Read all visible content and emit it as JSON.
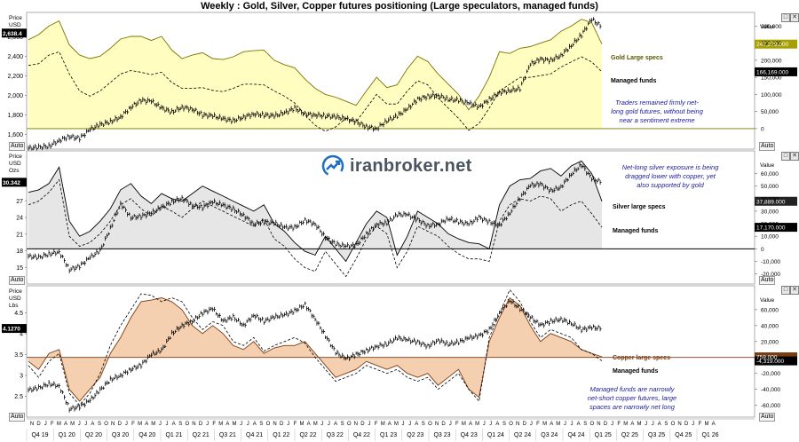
{
  "title": "Weekly : Gold, Silver, Copper futures positioning (Large speculators, managed funds)",
  "watermark": "iranbroker.net",
  "auto_label": "Auto",
  "colors": {
    "gold": "#7a7400",
    "gold_fill": "#fffdb8",
    "silver": "#000000",
    "silver_fill": "#e3e3e3",
    "copper": "#7a3c12",
    "copper_fill": "#f3cba8",
    "annotation": "#1a1aa0",
    "brand": "#1f6fc0"
  },
  "x_axis": {
    "months": [
      "N",
      "D",
      "J",
      "F",
      "M",
      "A",
      "M",
      "J",
      "J",
      "A",
      "S",
      "O",
      "N",
      "D",
      "J",
      "F",
      "M",
      "A",
      "M",
      "J",
      "J",
      "A",
      "S",
      "O",
      "N",
      "D",
      "J",
      "F",
      "M",
      "A",
      "M",
      "J",
      "J",
      "A",
      "S",
      "O",
      "N",
      "D",
      "J",
      "F",
      "M",
      "A",
      "M",
      "J",
      "J",
      "A",
      "S",
      "O",
      "N",
      "D",
      "J",
      "F",
      "M",
      "A",
      "M",
      "J",
      "J",
      "A",
      "S",
      "O",
      "N",
      "D",
      "J",
      "F",
      "M",
      "A",
      "M",
      "J",
      "J",
      "A",
      "S",
      "O",
      "N",
      "D",
      "J",
      "F",
      "M",
      "A",
      "M",
      "J",
      "J",
      "A",
      "S",
      "O",
      "N",
      "D",
      "J",
      "F",
      "M",
      "A",
      "M",
      "J",
      "J",
      "A",
      "S",
      "O",
      "N",
      "D",
      "J",
      "F",
      "M",
      "A"
    ],
    "quarters": [
      "Q4 19",
      "Q1 20",
      "Q2 20",
      "Q3 20",
      "Q4 20",
      "Q1 21",
      "Q2 21",
      "Q3 21",
      "Q4 21",
      "Q1 22",
      "Q2 22",
      "Q3 22",
      "Q4 22",
      "Q1 23",
      "Q2 23",
      "Q3 23",
      "Q4 23",
      "Q1 24",
      "Q2 24",
      "Q3 24",
      "Q4 24",
      "Q1 25",
      "Q2 25",
      "Q3 25",
      "Q4 25",
      "Q1 26"
    ]
  },
  "chart_data": [
    {
      "type": "line",
      "panel": "gold",
      "left_axis": {
        "label_1": "Price",
        "label_2": "USD",
        "ticks": [
          "2,600",
          "2,400",
          "2,200",
          "2,000",
          "1,800",
          "1,600"
        ],
        "range": [
          1450,
          2850
        ],
        "current": "2,638.4"
      },
      "right_axis": {
        "label": "Value",
        "ticks": [
          "300,000",
          "250,000",
          "200,000",
          "150,000",
          "100,000",
          "50,000",
          "0"
        ],
        "range": [
          -60000,
          340000
        ]
      },
      "annotation": [
        "Traders remained firmly net-",
        "long gold futures, without being",
        "near a sentiment extreme"
      ],
      "series": [
        {
          "name": "Gold Large specs",
          "value_label": "247,279.000",
          "style": "area",
          "values": [
            260000,
            275000,
            300000,
            315000,
            245000,
            215000,
            205000,
            212000,
            235000,
            262000,
            270000,
            270000,
            258000,
            270000,
            230000,
            205000,
            215000,
            222000,
            205000,
            202000,
            210000,
            225000,
            228000,
            230000,
            200000,
            187000,
            178000,
            145000,
            118000,
            100000,
            92000,
            80000,
            68000,
            110000,
            150000,
            120000,
            128000,
            175000,
            212000,
            196000,
            160000,
            130000,
            100000,
            55000,
            95000,
            150000,
            225000,
            220000,
            235000,
            240000,
            250000,
            260000,
            285000,
            300000,
            320000,
            310000,
            247279
          ]
        },
        {
          "name": "Managed funds",
          "value_label": "166,169.000",
          "style": "dashed",
          "values": [
            185000,
            190000,
            215000,
            225000,
            160000,
            110000,
            95000,
            110000,
            135000,
            160000,
            170000,
            165000,
            158000,
            165000,
            135000,
            118000,
            118000,
            120000,
            112000,
            108000,
            118000,
            130000,
            130000,
            128000,
            110000,
            95000,
            75000,
            40000,
            10000,
            -8000,
            5000,
            30000,
            20000,
            60000,
            100000,
            72000,
            72000,
            110000,
            140000,
            128000,
            90000,
            60000,
            30000,
            -5000,
            15000,
            60000,
            110000,
            130000,
            150000,
            150000,
            155000,
            160000,
            180000,
            195000,
            210000,
            195000,
            166169
          ]
        },
        {
          "name": "Price",
          "style": "ohlc",
          "values": [
            1460,
            1470,
            1480,
            1540,
            1580,
            1560,
            1650,
            1700,
            1730,
            1780,
            1880,
            1950,
            1940,
            1870,
            1830,
            1880,
            1860,
            1800,
            1790,
            1760,
            1740,
            1780,
            1810,
            1800,
            1790,
            1820,
            1870,
            1810,
            1800,
            1790,
            1780,
            1760,
            1730,
            1680,
            1660,
            1740,
            1790,
            1860,
            1960,
            1990,
            2000,
            1960,
            1950,
            1920,
            1880,
            1960,
            2030,
            2050,
            2070,
            2320,
            2370,
            2360,
            2410,
            2510,
            2620,
            2780,
            2700
          ]
        }
      ]
    },
    {
      "type": "line",
      "panel": "silver",
      "left_axis": {
        "label_1": "Price",
        "label_2": "USD",
        "label_3": "Ozs",
        "ticks": [
          "30",
          "27",
          "24",
          "21",
          "18",
          "15"
        ],
        "range": [
          12,
          36
        ],
        "current": "30.342"
      },
      "right_axis": {
        "label": "Value",
        "ticks": [
          "60,000",
          "50,000",
          "40,000",
          "30,000",
          "20,000",
          "10,000",
          "0",
          "-10,000",
          "-20,000"
        ],
        "range": [
          -28000,
          78000
        ]
      },
      "annotation": [
        "Net-long silver exposure is being",
        "dragged lower with copper, yet",
        "also supported by gold"
      ],
      "series": [
        {
          "name": "Silver large specs",
          "value_label": "37,889.000",
          "style": "area",
          "values": [
            45000,
            47000,
            52000,
            65000,
            22000,
            10000,
            14000,
            22000,
            32000,
            47000,
            52000,
            42000,
            36000,
            44000,
            40000,
            38000,
            44000,
            50000,
            46000,
            42000,
            38000,
            34000,
            30000,
            35000,
            20000,
            14000,
            5000,
            -2000,
            -5000,
            10000,
            0,
            -10000,
            5000,
            20000,
            30000,
            25000,
            -5000,
            10000,
            30000,
            25000,
            20000,
            12000,
            8000,
            5000,
            4000,
            0,
            35000,
            50000,
            55000,
            56000,
            62000,
            64000,
            58000,
            66000,
            70000,
            60000,
            37889
          ]
        },
        {
          "name": "Managed funds",
          "value_label": "17,170.000",
          "style": "dashed",
          "values": [
            35000,
            38000,
            45000,
            55000,
            10000,
            2000,
            5000,
            12000,
            22000,
            35000,
            40000,
            32000,
            26000,
            34000,
            30000,
            25000,
            32000,
            38000,
            34000,
            30000,
            26000,
            22000,
            18000,
            24000,
            8000,
            2000,
            -8000,
            -15000,
            -18000,
            -2000,
            -12000,
            -22000,
            -8000,
            8000,
            18000,
            12000,
            -15000,
            -2000,
            18000,
            14000,
            10000,
            2000,
            -4000,
            -8000,
            -8000,
            -10000,
            22000,
            35000,
            40000,
            38000,
            42000,
            40000,
            30000,
            35000,
            38000,
            28000,
            17170
          ]
        },
        {
          "name": "Price",
          "style": "ohlc",
          "values": [
            17.0,
            16.8,
            17.4,
            17.8,
            14.6,
            15.2,
            16.8,
            18.0,
            22.0,
            26.5,
            24.0,
            24.2,
            24.8,
            25.8,
            26.8,
            27.5,
            26.2,
            25.8,
            26.8,
            26.2,
            25.5,
            24.4,
            22.8,
            23.2,
            23.0,
            22.2,
            22.2,
            23.5,
            22.8,
            20.4,
            19.2,
            18.8,
            19.0,
            21.0,
            22.8,
            23.0,
            24.5,
            24.5,
            23.6,
            22.5,
            22.8,
            23.8,
            23.2,
            22.8,
            24.0,
            23.2,
            22.6,
            24.8,
            27.5,
            29.8,
            30.0,
            28.8,
            29.5,
            31.8,
            33.5,
            31.0,
            30.342
          ]
        }
      ]
    },
    {
      "type": "line",
      "panel": "copper",
      "left_axis": {
        "label_1": "Price",
        "label_2": "USD",
        "label_3": "Lbs",
        "ticks": [
          "4.5",
          "4",
          "3.5",
          "3",
          "2.5"
        ],
        "range": [
          2.0,
          5.15
        ],
        "current": "4.1270"
      },
      "right_axis": {
        "label": "Value",
        "ticks": [
          "60,000",
          "40,000",
          "20,000",
          "0",
          "-20,000",
          "-40,000",
          "-60,000"
        ],
        "range": [
          -75000,
          90000
        ]
      },
      "annotation": [
        "Managed funds are narrowly",
        "net-short copper futures, large",
        "spaces are narrowly net long"
      ],
      "series": [
        {
          "name": "Copper large specs",
          "value_label": "759.000",
          "style": "area",
          "values": [
            -5000,
            -15000,
            5000,
            10000,
            -40000,
            -55000,
            -40000,
            -25000,
            5000,
            25000,
            50000,
            70000,
            72000,
            75000,
            70000,
            60000,
            40000,
            30000,
            40000,
            30000,
            15000,
            10000,
            20000,
            5000,
            12000,
            15000,
            15000,
            20000,
            5000,
            -10000,
            -25000,
            -20000,
            -15000,
            -5000,
            -10000,
            -15000,
            -10000,
            -20000,
            -25000,
            -20000,
            -35000,
            -25000,
            -15000,
            -40000,
            -50000,
            20000,
            50000,
            75000,
            65000,
            40000,
            20000,
            30000,
            25000,
            20000,
            10000,
            5000,
            759
          ]
        },
        {
          "name": "Managed funds",
          "value_label": "-4,319.000",
          "style": "dashed",
          "values": [
            -10000,
            -25000,
            -5000,
            5000,
            -45000,
            -60000,
            -45000,
            -20000,
            15000,
            40000,
            60000,
            80000,
            78000,
            70000,
            75000,
            70000,
            50000,
            35000,
            45000,
            40000,
            20000,
            15000,
            25000,
            8000,
            15000,
            20000,
            25000,
            18000,
            0,
            -15000,
            -30000,
            -25000,
            -20000,
            -10000,
            -15000,
            -20000,
            -15000,
            -25000,
            -30000,
            -25000,
            -40000,
            -30000,
            -20000,
            -40000,
            -55000,
            25000,
            55000,
            85000,
            70000,
            45000,
            25000,
            35000,
            30000,
            25000,
            10000,
            5000,
            -4319
          ]
        },
        {
          "name": "Price",
          "style": "ohlc",
          "values": [
            2.65,
            2.7,
            2.8,
            2.75,
            2.2,
            2.25,
            2.4,
            2.65,
            2.9,
            3.0,
            3.15,
            3.25,
            3.5,
            3.6,
            4.0,
            4.2,
            4.3,
            4.5,
            4.6,
            4.3,
            4.4,
            4.2,
            4.45,
            4.3,
            4.4,
            4.45,
            4.55,
            4.7,
            4.35,
            3.95,
            3.55,
            3.4,
            3.5,
            3.6,
            3.7,
            3.75,
            3.9,
            3.85,
            3.8,
            3.7,
            3.85,
            3.75,
            3.8,
            3.9,
            3.95,
            4.1,
            4.5,
            4.8,
            4.6,
            4.4,
            4.2,
            4.3,
            4.35,
            4.25,
            4.1,
            4.15,
            4.127
          ]
        }
      ]
    }
  ]
}
